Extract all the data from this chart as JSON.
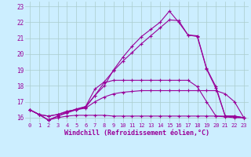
{
  "xlabel": "Windchill (Refroidissement éolien,°C)",
  "x_values": [
    0,
    1,
    2,
    3,
    4,
    5,
    6,
    7,
    8,
    9,
    10,
    11,
    12,
    13,
    14,
    15,
    16,
    17,
    18,
    19,
    20,
    21,
    22,
    23
  ],
  "line1": [
    16.5,
    16.2,
    15.85,
    16.0,
    16.1,
    16.15,
    16.15,
    16.15,
    16.15,
    16.1,
    16.1,
    16.1,
    16.1,
    16.1,
    16.1,
    16.1,
    16.1,
    16.1,
    16.1,
    16.1,
    16.1,
    16.1,
    16.05,
    16.0
  ],
  "line2": [
    16.5,
    16.2,
    16.1,
    16.2,
    16.4,
    16.5,
    16.6,
    17.0,
    17.3,
    17.5,
    17.6,
    17.65,
    17.7,
    17.7,
    17.7,
    17.7,
    17.7,
    17.7,
    17.7,
    17.7,
    17.7,
    17.5,
    17.0,
    16.0
  ],
  "line3": [
    16.5,
    16.2,
    16.1,
    16.2,
    16.4,
    16.5,
    16.7,
    17.4,
    18.2,
    18.35,
    18.35,
    18.35,
    18.35,
    18.35,
    18.35,
    18.35,
    18.35,
    18.35,
    17.95,
    17.0,
    16.1,
    16.05,
    16.0,
    16.0
  ],
  "line4": [
    16.5,
    16.2,
    15.85,
    16.1,
    16.35,
    16.55,
    16.7,
    17.8,
    18.25,
    18.95,
    19.55,
    20.1,
    20.65,
    21.15,
    21.65,
    22.15,
    22.1,
    21.2,
    21.15,
    19.1,
    17.95,
    16.1,
    16.1,
    16.0
  ],
  "line5": [
    16.5,
    16.2,
    15.85,
    16.1,
    16.3,
    16.5,
    16.65,
    17.4,
    18.0,
    19.0,
    19.8,
    20.5,
    21.1,
    21.55,
    22.0,
    22.7,
    22.0,
    21.2,
    21.1,
    19.05,
    17.85,
    16.1,
    16.1,
    16.0
  ],
  "ylim": [
    15.7,
    23.3
  ],
  "yticks": [
    16,
    17,
    18,
    19,
    20,
    21,
    22,
    23
  ],
  "bg_color": "#cceeff",
  "line_color": "#990099",
  "marker": "+",
  "markersize": 3,
  "linewidth": 0.8,
  "grid_color": "#aacccc",
  "tick_fontsize": 5,
  "xlabel_fontsize": 6
}
